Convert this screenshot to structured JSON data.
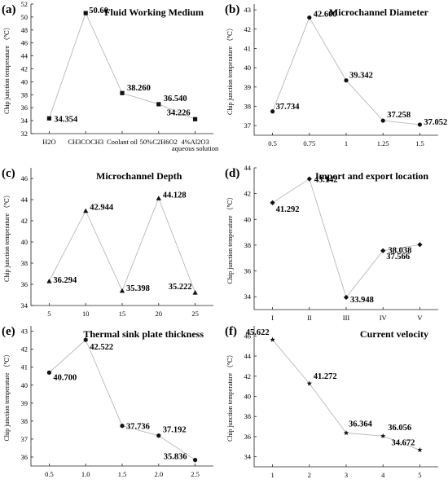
{
  "chart_data": [
    {
      "type": "line",
      "panel": "(a)",
      "title": "Fluid Working Medium",
      "ylabel": "Chip junction temperature （℃）",
      "categories": [
        "H2O",
        "CH3COCH3",
        "Coolant oil",
        "50%C2H6O2",
        [
          "4%Al2O3",
          "aqueous solution"
        ]
      ],
      "values": [
        34.354,
        50.6,
        38.26,
        36.54,
        34.226
      ],
      "data_labels": [
        "34.354",
        "50.60",
        "38.260",
        "36.540",
        "34.226"
      ],
      "marker": "square",
      "ylim": [
        32,
        52
      ],
      "yticks": [
        32,
        34,
        36,
        38,
        40,
        42,
        44,
        46,
        48,
        50,
        52
      ]
    },
    {
      "type": "line",
      "panel": "(b)",
      "title": "Microchannel Diameter",
      "ylabel": "Chip junction temperature （℃）",
      "categories": [
        "0.5",
        "0.75",
        "1",
        "1.25",
        "1.5"
      ],
      "values": [
        37.734,
        42.6,
        39.342,
        37.258,
        37.052
      ],
      "data_labels": [
        "37.734",
        "42.600",
        "39.342",
        "37.258",
        "37.052"
      ],
      "marker": "circle",
      "ylim": [
        36.5,
        43.3
      ],
      "yticks": [
        37,
        38,
        39,
        40,
        41,
        42,
        43
      ]
    },
    {
      "type": "line",
      "panel": "(c)",
      "title": "Microchannel Depth",
      "ylabel": "Chip junction temperature （℃）",
      "categories": [
        "5",
        "10",
        "15",
        "20",
        "25"
      ],
      "values": [
        36.294,
        42.944,
        35.398,
        44.128,
        35.222
      ],
      "data_labels": [
        "36.294",
        "42.944",
        "35.398",
        "44.128",
        "35.222"
      ],
      "marker": "triangle",
      "ylim": [
        34,
        47
      ],
      "yticks": [
        34,
        36,
        38,
        40,
        42,
        44,
        46
      ]
    },
    {
      "type": "line",
      "panel": "(d)",
      "title": "Import and export location",
      "ylabel": "Chip junction temperature （℃）",
      "categories": [
        "I",
        "II",
        "III",
        "IV",
        "V"
      ],
      "values": [
        41.292,
        43.142,
        33.948,
        37.566,
        38.038
      ],
      "data_labels": [
        "41.292",
        "43.142",
        "33.948",
        "37.566",
        "38.038"
      ],
      "marker": "diamond",
      "ylim": [
        33,
        44
      ],
      "yticks": [
        34,
        36,
        38,
        40,
        42,
        44
      ]
    },
    {
      "type": "line",
      "panel": "(e)",
      "title": "Thermal sink plate thickness",
      "ylabel": "Chip junction temperature （℃）",
      "categories": [
        "0.5",
        "1.0",
        "1.5",
        "2.0",
        "2.5"
      ],
      "values": [
        40.7,
        42.522,
        37.736,
        37.192,
        35.836
      ],
      "data_labels": [
        "40.700",
        "42.522",
        "37.736",
        "37.192",
        "35.836"
      ],
      "marker": "hexagon",
      "ylim": [
        35.5,
        43.3
      ],
      "yticks": [
        36,
        37,
        38,
        39,
        40,
        41,
        42,
        43
      ]
    },
    {
      "type": "line",
      "panel": "(f)",
      "title": "Current velocity",
      "ylabel": "Chip junction temperature （℃）",
      "categories": [
        "1",
        "2",
        "3",
        "4",
        "5"
      ],
      "values": [
        45.622,
        41.272,
        36.364,
        36.056,
        34.672
      ],
      "data_labels": [
        "45.622",
        "41.272",
        "36.364",
        "36.056",
        "34.672"
      ],
      "marker": "star",
      "ylim": [
        33,
        47
      ],
      "yticks": [
        34,
        36,
        38,
        40,
        42,
        44,
        46
      ]
    }
  ]
}
